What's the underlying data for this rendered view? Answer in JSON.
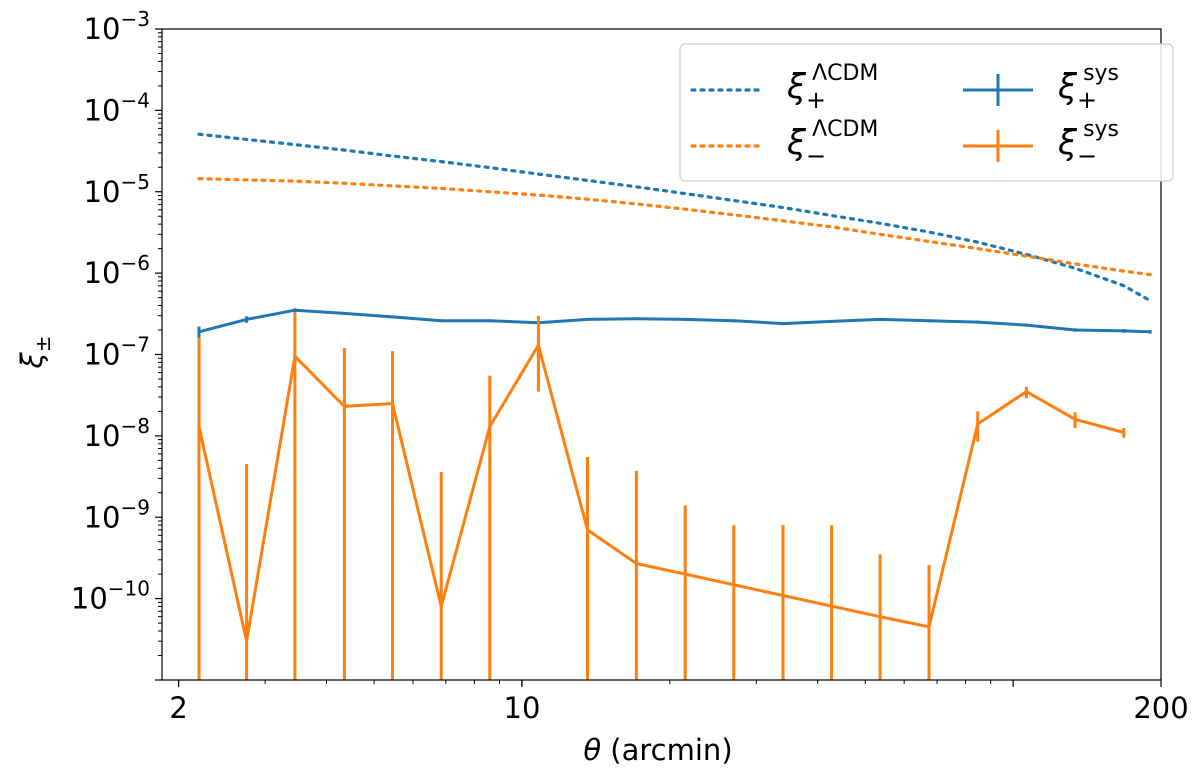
{
  "chart_data": {
    "type": "line",
    "xlabel": {
      "symbol": "θ",
      "text": " (arcmin)"
    },
    "ylabel": {
      "symbol": "ξ",
      "subscript": "±"
    },
    "xscale": "log",
    "yscale": "log",
    "xlim": [
      1.85,
      200
    ],
    "ylim": [
      1e-11,
      0.001
    ],
    "xticks": [
      {
        "value": 2,
        "label": "2"
      },
      {
        "value": 10,
        "label": "10"
      },
      {
        "value": 200,
        "label": "200"
      }
    ],
    "yticks": [
      {
        "value": 1e-10,
        "base": "10",
        "exp": "−10"
      },
      {
        "value": 1e-09,
        "base": "10",
        "exp": "−9"
      },
      {
        "value": 1e-08,
        "base": "10",
        "exp": "−8"
      },
      {
        "value": 1e-07,
        "base": "10",
        "exp": "−7"
      },
      {
        "value": 1e-06,
        "base": "10",
        "exp": "−6"
      },
      {
        "value": 1e-05,
        "base": "10",
        "exp": "−5"
      },
      {
        "value": 0.0001,
        "base": "10",
        "exp": "−4"
      },
      {
        "value": 0.001,
        "base": "10",
        "exp": "−3"
      }
    ],
    "legend_position": "upper right",
    "series": [
      {
        "key": "xi-plus-lcdm",
        "legend": {
          "symbol": "ξ",
          "sub": "+",
          "sup": "ΛCDM"
        },
        "color": "#1f77b4",
        "style": "dotted",
        "x": [
          2.2,
          2.75,
          3.45,
          4.35,
          5.45,
          6.85,
          8.6,
          10.8,
          13.6,
          17.1,
          21.5,
          27.0,
          34.0,
          42.7,
          53.6,
          67.4,
          84.7,
          106.4,
          133.7,
          168.0,
          190.0
        ],
        "y": [
          5.1e-05,
          4.4e-05,
          3.8e-05,
          3.25e-05,
          2.75e-05,
          2.35e-05,
          1.98e-05,
          1.65e-05,
          1.38e-05,
          1.15e-05,
          9.5e-06,
          7.8e-06,
          6.4e-06,
          5.1e-06,
          4.1e-06,
          3.2e-06,
          2.4e-06,
          1.7e-06,
          1.15e-06,
          7e-07,
          4.6e-07
        ]
      },
      {
        "key": "xi-minus-lcdm",
        "legend": {
          "symbol": "ξ",
          "sub": "−",
          "sup": "ΛCDM"
        },
        "color": "#ff7f0e",
        "style": "dotted",
        "x": [
          2.2,
          2.75,
          3.45,
          4.35,
          5.45,
          6.85,
          8.6,
          10.8,
          13.6,
          17.1,
          21.5,
          27.0,
          34.0,
          42.7,
          53.6,
          67.4,
          84.7,
          106.4,
          133.7,
          168.0,
          190.0
        ],
        "y": [
          1.45e-05,
          1.4e-05,
          1.35e-05,
          1.27e-05,
          1.18e-05,
          1.1e-05,
          1e-05,
          9.1e-06,
          8.1e-06,
          7.1e-06,
          6.1e-06,
          5.2e-06,
          4.4e-06,
          3.7e-06,
          3e-06,
          2.45e-06,
          2e-06,
          1.62e-06,
          1.3e-06,
          1.06e-06,
          9.6e-07
        ]
      },
      {
        "key": "xi-plus-sys",
        "legend": {
          "symbol": "ξ",
          "sub": "+",
          "sup": "sys"
        },
        "color": "#1f77b4",
        "style": "errorbar",
        "x": [
          2.2,
          2.75,
          3.45,
          4.35,
          5.45,
          6.85,
          8.6,
          10.8,
          13.6,
          17.1,
          21.5,
          27.0,
          34.0,
          42.7,
          53.6,
          67.4,
          84.7,
          106.4,
          133.7,
          168.0,
          190.0
        ],
        "y": [
          1.9e-07,
          2.7e-07,
          3.5e-07,
          3.2e-07,
          2.9e-07,
          2.6e-07,
          2.6e-07,
          2.45e-07,
          2.7e-07,
          2.75e-07,
          2.7e-07,
          2.6e-07,
          2.4e-07,
          2.55e-07,
          2.7e-07,
          2.6e-07,
          2.5e-07,
          2.3e-07,
          2e-07,
          1.95e-07,
          1.9e-07
        ],
        "yerr_low": [
          1.6e-07,
          2.45e-07,
          3.3e-07,
          3.1e-07,
          2.8e-07,
          2.5e-07,
          2.5e-07,
          2.35e-07,
          2.6e-07,
          2.65e-07,
          2.6e-07,
          2.5e-07,
          2.3e-07,
          2.45e-07,
          2.6e-07,
          2.5e-07,
          2.4e-07,
          2.2e-07,
          1.9e-07,
          1.85e-07,
          1.8e-07
        ],
        "yerr_high": [
          2.2e-07,
          2.95e-07,
          3.7e-07,
          3.3e-07,
          3e-07,
          2.7e-07,
          2.7e-07,
          2.55e-07,
          2.8e-07,
          2.85e-07,
          2.8e-07,
          2.7e-07,
          2.5e-07,
          2.65e-07,
          2.8e-07,
          2.7e-07,
          2.6e-07,
          2.4e-07,
          2.1e-07,
          2.05e-07,
          2e-07
        ]
      },
      {
        "key": "xi-minus-sys",
        "legend": {
          "symbol": "ξ",
          "sub": "−",
          "sup": "sys"
        },
        "color": "#ff7f0e",
        "style": "errorbar",
        "x": [
          2.2,
          2.75,
          3.45,
          4.35,
          5.45,
          6.85,
          8.6,
          10.8,
          13.6,
          17.1,
          21.5,
          27.0,
          34.0,
          42.7,
          53.6,
          67.4,
          84.7,
          106.4,
          133.7,
          168.0,
          190.0
        ],
        "y": [
          1.3e-08,
          3e-11,
          9.5e-08,
          2.3e-08,
          2.5e-08,
          8e-11,
          1.3e-08,
          1.3e-07,
          7e-10,
          2.7e-10,
          null,
          null,
          null,
          null,
          6e-11,
          4.5e-11,
          1.4e-08,
          3.5e-08,
          1.6e-08,
          1.1e-08,
          null
        ],
        "yerr_low": [
          1e-11,
          1e-11,
          1e-11,
          1e-11,
          1e-11,
          1e-11,
          1e-11,
          3.5e-08,
          1e-11,
          1e-11,
          1e-11,
          1e-11,
          1e-11,
          1e-11,
          1e-11,
          1e-11,
          8.5e-09,
          2.9e-08,
          1.25e-08,
          9.5e-09,
          null
        ],
        "yerr_high": [
          1.6e-07,
          4.5e-09,
          3.3e-07,
          1.2e-07,
          1.1e-07,
          3.6e-09,
          5.5e-08,
          3e-07,
          5.5e-09,
          3.7e-09,
          1.4e-09,
          8e-10,
          8e-10,
          8e-10,
          3.5e-10,
          2.6e-10,
          2e-08,
          4e-08,
          1.95e-08,
          1.25e-08,
          null
        ]
      }
    ]
  }
}
